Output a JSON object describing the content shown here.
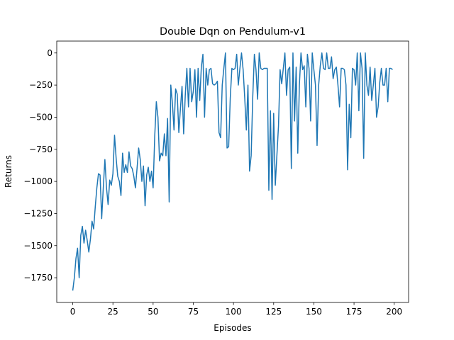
{
  "chart_data": {
    "type": "line",
    "title": "Double Dqn on Pendulum-v1",
    "x_label": "Episodes",
    "y_label": "Returns",
    "x": [
      0,
      1,
      2,
      3,
      4,
      5,
      6,
      7,
      8,
      9,
      10,
      11,
      12,
      13,
      14,
      15,
      16,
      17,
      18,
      19,
      20,
      21,
      22,
      23,
      24,
      25,
      26,
      27,
      28,
      29,
      30,
      31,
      32,
      33,
      34,
      35,
      36,
      37,
      38,
      39,
      40,
      41,
      42,
      43,
      44,
      45,
      46,
      47,
      48,
      49,
      50,
      51,
      52,
      53,
      54,
      55,
      56,
      57,
      58,
      59,
      60,
      61,
      62,
      63,
      64,
      65,
      66,
      67,
      68,
      69,
      70,
      71,
      72,
      73,
      74,
      75,
      76,
      77,
      78,
      79,
      80,
      81,
      82,
      83,
      84,
      85,
      86,
      87,
      88,
      89,
      90,
      91,
      92,
      93,
      94,
      95,
      96,
      97,
      98,
      99,
      100,
      101,
      102,
      103,
      104,
      105,
      106,
      107,
      108,
      109,
      110,
      111,
      112,
      113,
      114,
      115,
      116,
      117,
      118,
      119,
      120,
      121,
      122,
      123,
      124,
      125,
      126,
      127,
      128,
      129,
      130,
      131,
      132,
      133,
      134,
      135,
      136,
      137,
      138,
      139,
      140,
      141,
      142,
      143,
      144,
      145,
      146,
      147,
      148,
      149,
      150,
      151,
      152,
      153,
      154,
      155,
      156,
      157,
      158,
      159,
      160,
      161,
      162,
      163,
      164,
      165,
      166,
      167,
      168,
      169,
      170,
      171,
      172,
      173,
      174,
      175,
      176,
      177,
      178,
      179,
      180,
      181,
      182,
      183,
      184,
      185,
      186,
      187,
      188,
      189,
      190,
      191,
      192,
      193,
      194,
      195,
      196,
      197,
      198,
      199
    ],
    "series": [
      {
        "color": "#1f77b4",
        "values": [
          -1850,
          -1750,
          -1600,
          -1520,
          -1750,
          -1420,
          -1350,
          -1480,
          -1380,
          -1460,
          -1550,
          -1450,
          -1310,
          -1370,
          -1200,
          -1050,
          -940,
          -950,
          -1290,
          -1050,
          -830,
          -1050,
          -1180,
          -990,
          -1030,
          -940,
          -640,
          -820,
          -960,
          -1000,
          -1110,
          -780,
          -930,
          -870,
          -930,
          -770,
          -880,
          -900,
          -960,
          -1050,
          -900,
          -740,
          -830,
          -1000,
          -880,
          -1190,
          -950,
          -890,
          -1000,
          -920,
          -1050,
          -650,
          -380,
          -500,
          -840,
          -780,
          -800,
          -630,
          -800,
          -510,
          -1160,
          -250,
          -390,
          -600,
          -280,
          -320,
          -620,
          -430,
          -260,
          -630,
          -330,
          -120,
          -420,
          -120,
          -380,
          -300,
          -130,
          -500,
          -120,
          -370,
          -110,
          -10,
          -500,
          -120,
          -250,
          -130,
          -120,
          -240,
          -250,
          -240,
          -220,
          -620,
          -660,
          -250,
          -120,
          0,
          -740,
          -730,
          -350,
          -120,
          -130,
          -120,
          -10,
          -250,
          -120,
          0,
          -130,
          -350,
          -600,
          -250,
          -920,
          -800,
          -340,
          -10,
          -130,
          -360,
          0,
          -120,
          -130,
          -120,
          -120,
          -120,
          -1070,
          -450,
          -1140,
          -470,
          -1030,
          -800,
          -570,
          -130,
          -240,
          -120,
          0,
          -330,
          -130,
          -110,
          -900,
          0,
          -530,
          -110,
          -780,
          -250,
          0,
          -130,
          -100,
          -420,
          -10,
          -120,
          -530,
          0,
          -130,
          -250,
          -720,
          -250,
          -100,
          0,
          -120,
          -130,
          0,
          -120,
          -120,
          -30,
          -200,
          -130,
          -110,
          -250,
          -420,
          -120,
          -120,
          -130,
          -250,
          -910,
          -400,
          -660,
          -120,
          -130,
          -250,
          0,
          -450,
          0,
          -120,
          -820,
          0,
          -250,
          -330,
          -110,
          -370,
          -250,
          -120,
          -500,
          -420,
          -230,
          -120,
          -250,
          -250,
          -120,
          -380,
          -120,
          -120,
          -130
        ]
      }
    ],
    "xlim": [
      -9.95,
      208.95
    ],
    "ylim": [
      -1942.5,
      92.5
    ],
    "xticks": [
      0,
      25,
      50,
      75,
      100,
      125,
      150,
      175,
      200
    ],
    "yticks": [
      {
        "value": -1750,
        "label": "−1750"
      },
      {
        "value": -1500,
        "label": "−1500"
      },
      {
        "value": -1250,
        "label": "−1250"
      },
      {
        "value": -1000,
        "label": "−1000"
      },
      {
        "value": -750,
        "label": "−750"
      },
      {
        "value": -500,
        "label": "−500"
      },
      {
        "value": -250,
        "label": "−250"
      },
      0
    ]
  }
}
